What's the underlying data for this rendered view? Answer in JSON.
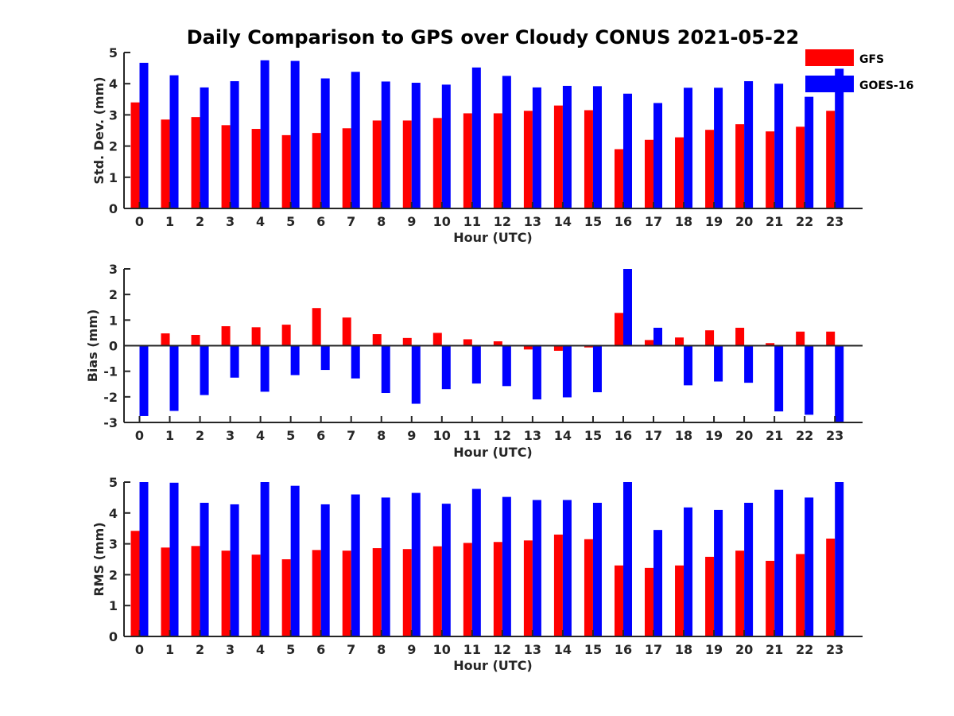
{
  "chart_data": {
    "title": "Daily Comparison to GPS over Cloudy CONUS 2021-05-22",
    "type": "bar",
    "colors": {
      "GFS": "#ff0000",
      "GOES-16": "#0000ff",
      "axis": "#262626"
    },
    "legend": {
      "entries": [
        "GFS",
        "GOES-16"
      ],
      "placement": "top-right"
    },
    "categories": [
      "0",
      "1",
      "2",
      "3",
      "4",
      "5",
      "6",
      "7",
      "8",
      "9",
      "10",
      "11",
      "12",
      "13",
      "14",
      "15",
      "16",
      "17",
      "18",
      "19",
      "20",
      "21",
      "22",
      "23"
    ],
    "panels": [
      {
        "ylabel": "Std. Dev. (mm)",
        "xlabel": "Hour (UTC)",
        "ylim": [
          0,
          5
        ],
        "yticks": [
          0,
          1,
          2,
          3,
          4,
          5
        ],
        "series": [
          {
            "name": "GFS",
            "values": [
              3.4,
              2.85,
              2.93,
              2.67,
              2.55,
              2.35,
              2.42,
              2.57,
              2.82,
              2.82,
              2.9,
              3.05,
              3.05,
              3.13,
              3.3,
              3.15,
              1.9,
              2.2,
              2.28,
              2.52,
              2.7,
              2.47,
              2.62,
              3.13
            ]
          },
          {
            "name": "GOES-16",
            "values": [
              4.67,
              4.27,
              3.88,
              4.08,
              4.75,
              4.73,
              4.17,
              4.38,
              4.07,
              4.03,
              3.97,
              4.52,
              4.25,
              3.88,
              3.93,
              3.92,
              3.68,
              3.38,
              3.87,
              3.87,
              4.08,
              4.0,
              3.58,
              4.48
            ]
          }
        ]
      },
      {
        "ylabel": "Bias (mm)",
        "xlabel": "Hour (UTC)",
        "ylim": [
          -3,
          3
        ],
        "yticks": [
          -3,
          -2,
          -1,
          0,
          1,
          2,
          3
        ],
        "series": [
          {
            "name": "GFS",
            "values": [
              0.0,
              0.48,
              0.42,
              0.76,
              0.72,
              0.82,
              1.47,
              1.1,
              0.45,
              0.3,
              0.5,
              0.25,
              0.17,
              -0.15,
              -0.2,
              -0.07,
              1.28,
              0.22,
              0.32,
              0.6,
              0.7,
              0.1,
              0.55,
              0.55
            ]
          },
          {
            "name": "GOES-16",
            "values": [
              -2.75,
              -2.55,
              -1.93,
              -1.25,
              -1.8,
              -1.15,
              -0.95,
              -1.28,
              -1.85,
              -2.27,
              -1.7,
              -1.48,
              -1.58,
              -2.1,
              -2.02,
              -1.82,
              3.0,
              0.7,
              -1.55,
              -1.4,
              -1.45,
              -2.57,
              -2.7,
              -3.0
            ]
          }
        ]
      },
      {
        "ylabel": "RMS (mm)",
        "xlabel": "Hour (UTC)",
        "ylim": [
          0,
          5
        ],
        "yticks": [
          0,
          1,
          2,
          3,
          4,
          5
        ],
        "series": [
          {
            "name": "GFS",
            "values": [
              3.42,
              2.88,
              2.93,
              2.78,
              2.65,
              2.5,
              2.8,
              2.78,
              2.86,
              2.83,
              2.92,
              3.03,
              3.06,
              3.11,
              3.3,
              3.15,
              2.3,
              2.22,
              2.3,
              2.58,
              2.78,
              2.45,
              2.67,
              3.17
            ]
          },
          {
            "name": "GOES-16",
            "values": [
              5.0,
              4.98,
              4.33,
              4.28,
              5.0,
              4.88,
              4.28,
              4.6,
              4.5,
              4.65,
              4.3,
              4.78,
              4.52,
              4.42,
              4.42,
              4.33,
              5.0,
              3.45,
              4.18,
              4.1,
              4.33,
              4.75,
              4.5,
              5.0
            ]
          }
        ]
      }
    ]
  }
}
